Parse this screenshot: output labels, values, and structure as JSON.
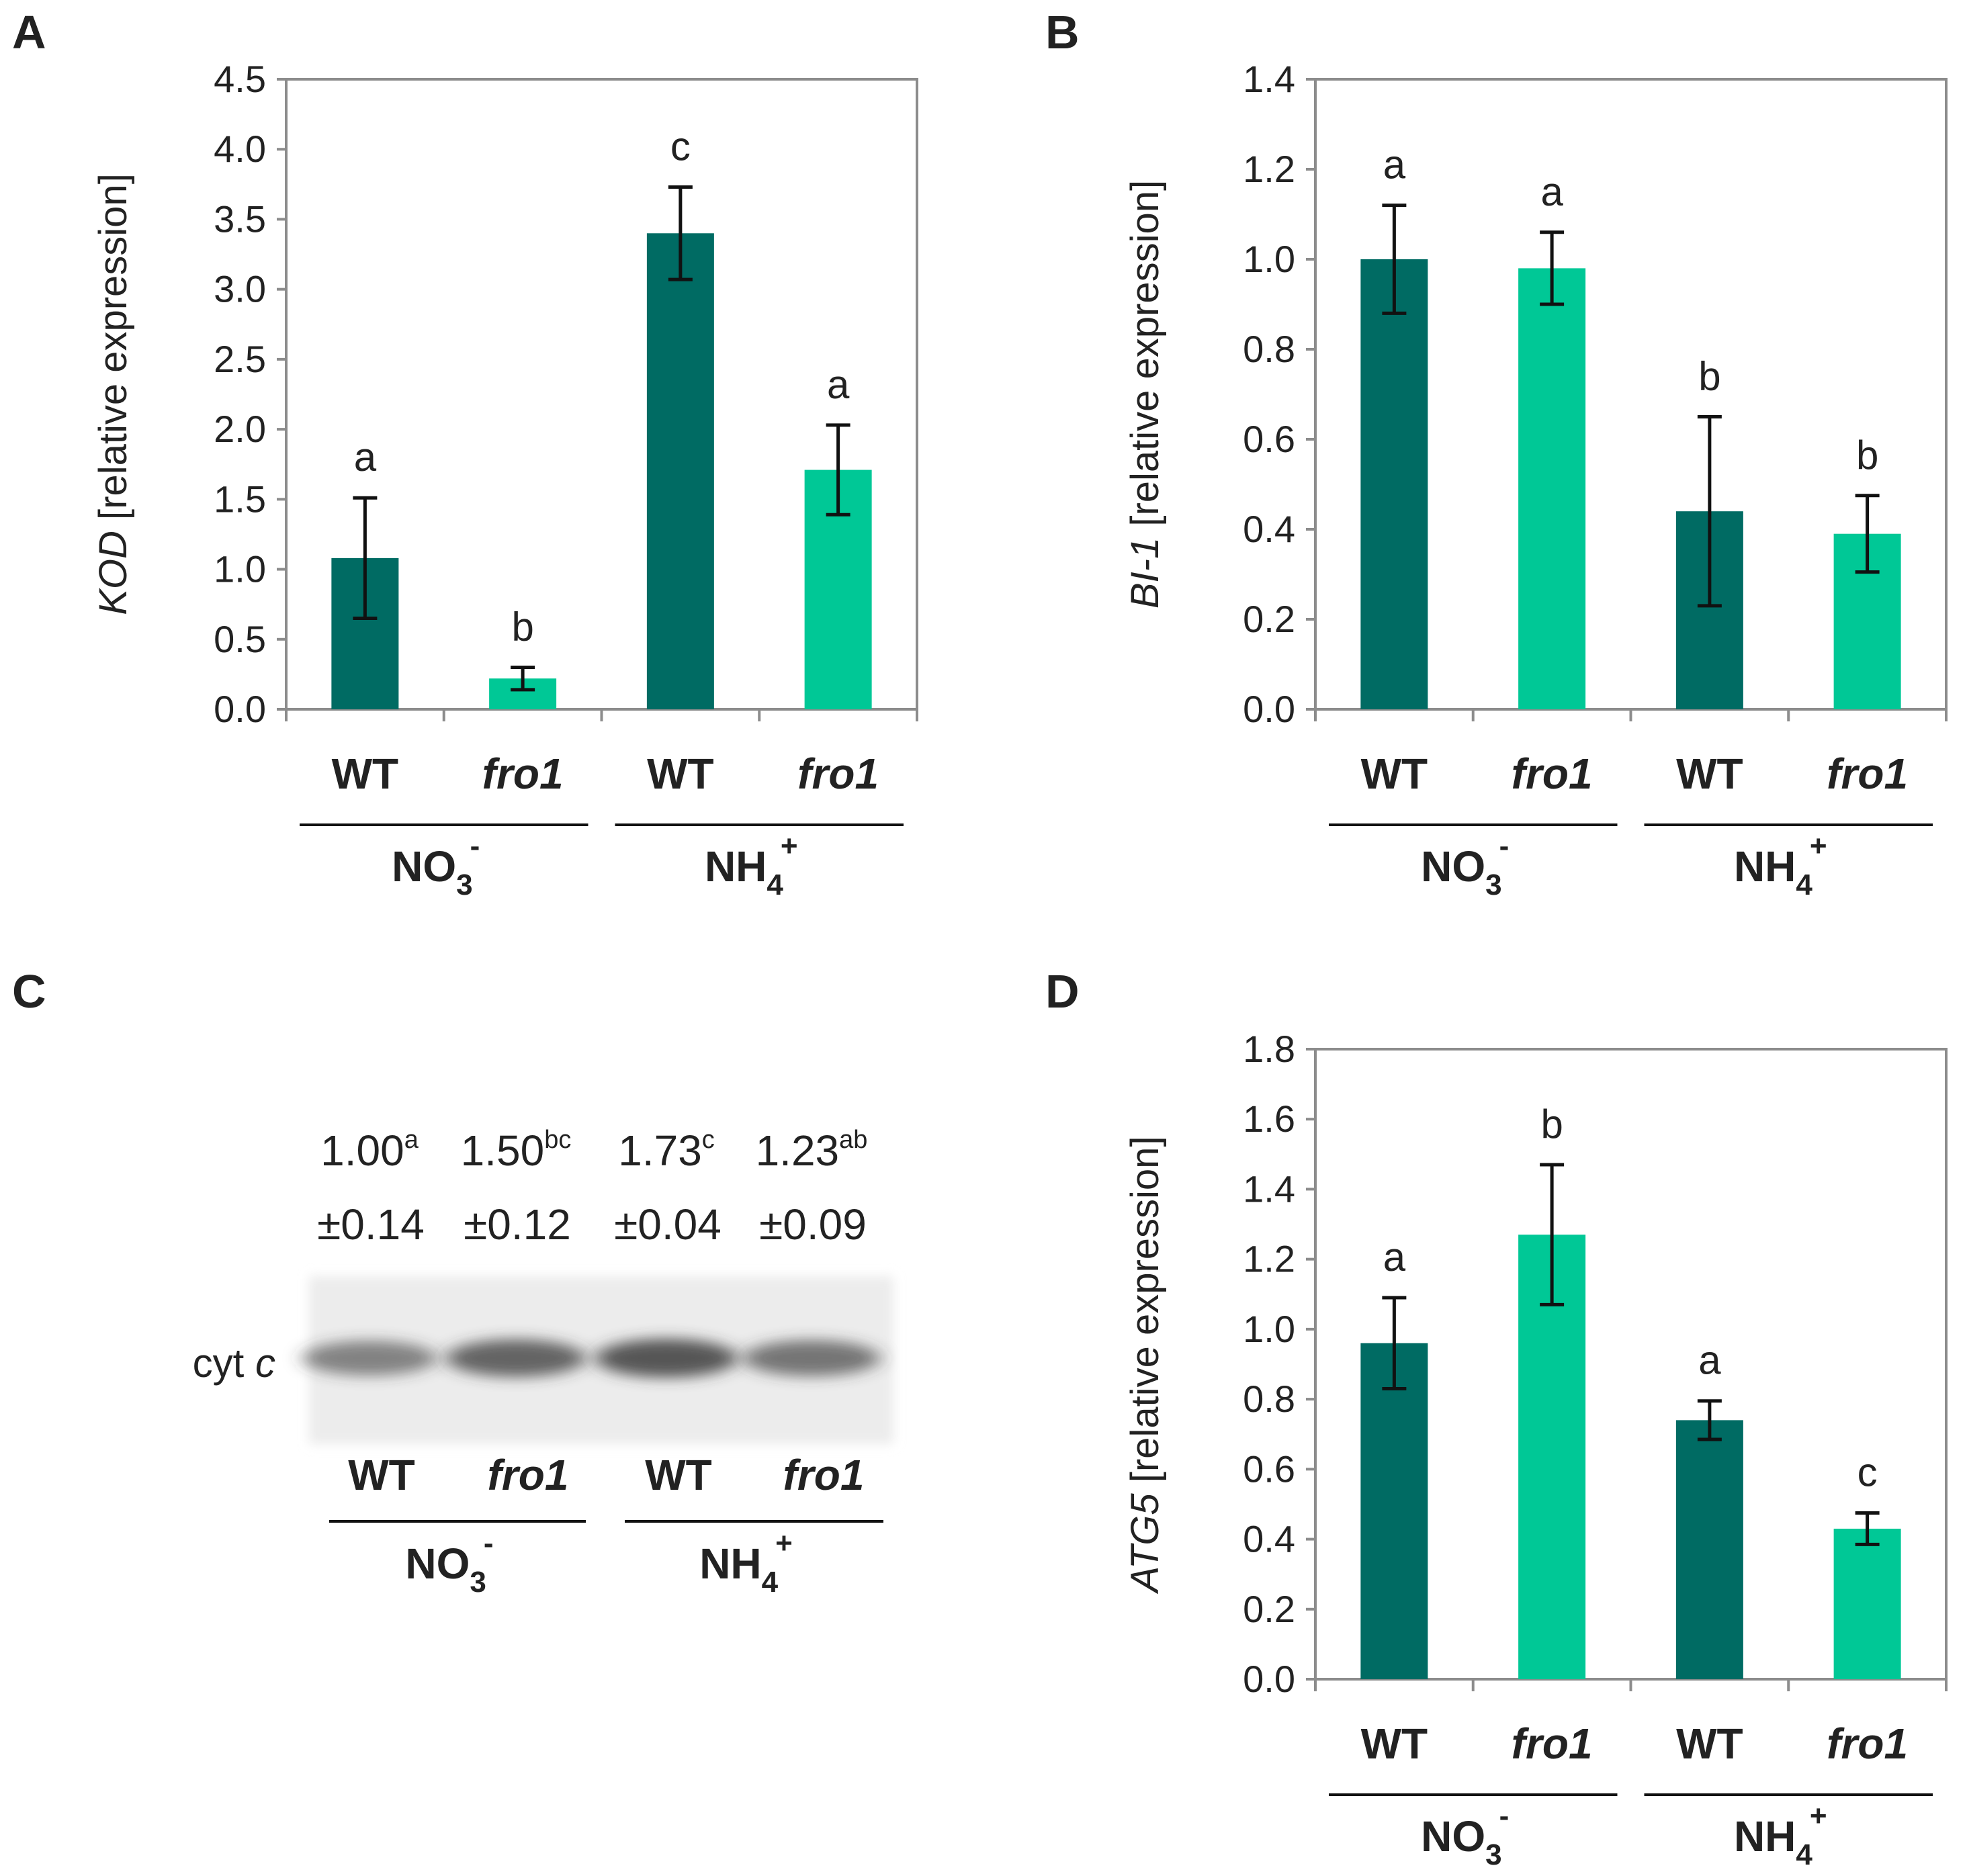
{
  "colors": {
    "wt": "#006b63",
    "fro1": "#00c896",
    "axis": "#8c8c8c",
    "text": "#222222",
    "errorbar": "#111111"
  },
  "panels": {
    "A": {
      "letter": "A"
    },
    "B": {
      "letter": "B"
    },
    "C": {
      "letter": "C"
    },
    "D": {
      "letter": "D"
    }
  },
  "chart_data": [
    {
      "id": "A",
      "type": "bar",
      "ylabel_gene": "KOD",
      "ylabel_rest": " [relative expression]",
      "ylim": [
        0,
        4.5
      ],
      "yticks": [
        "0.0",
        "0.5",
        "1.0",
        "1.5",
        "2.0",
        "2.5",
        "3.0",
        "3.5",
        "4.0",
        "4.5"
      ],
      "categories": [
        "WT",
        "fro1",
        "WT",
        "fro1"
      ],
      "groups": [
        {
          "base": "NO",
          "sub": "3",
          "sup": "-"
        },
        {
          "base": "NH",
          "sub": "4",
          "sup": "+"
        }
      ],
      "values": [
        1.08,
        0.22,
        3.4,
        1.71
      ],
      "errors": [
        0.43,
        0.08,
        0.33,
        0.32
      ],
      "letters": [
        "a",
        "b",
        "c",
        "a"
      ]
    },
    {
      "id": "B",
      "type": "bar",
      "ylabel_gene": "BI-1",
      "ylabel_rest": " [relative expression]",
      "ylim": [
        0,
        1.4
      ],
      "yticks": [
        "0.0",
        "0.2",
        "0.4",
        "0.6",
        "0.8",
        "1.0",
        "1.2",
        "1.4"
      ],
      "categories": [
        "WT",
        "fro1",
        "WT",
        "fro1"
      ],
      "groups": [
        {
          "base": "NO",
          "sub": "3",
          "sup": "-"
        },
        {
          "base": "NH",
          "sub": "4",
          "sup": "+"
        }
      ],
      "values": [
        1.0,
        0.98,
        0.44,
        0.39
      ],
      "errors": [
        0.12,
        0.08,
        0.21,
        0.085
      ],
      "letters": [
        "a",
        "a",
        "b",
        "b"
      ]
    },
    {
      "id": "D",
      "type": "bar",
      "ylabel_gene": "ATG5",
      "ylabel_rest": " [relative expression]",
      "ylim": [
        0,
        1.8
      ],
      "yticks": [
        "0.0",
        "0.2",
        "0.4",
        "0.6",
        "0.8",
        "1.0",
        "1.2",
        "1.4",
        "1.6",
        "1.8"
      ],
      "categories": [
        "WT",
        "fro1",
        "WT",
        "fro1"
      ],
      "groups": [
        {
          "base": "NO",
          "sub": "3",
          "sup": "-"
        },
        {
          "base": "NH",
          "sub": "4",
          "sup": "+"
        }
      ],
      "values": [
        0.96,
        1.27,
        0.74,
        0.43
      ],
      "errors": [
        0.13,
        0.2,
        0.055,
        0.045
      ],
      "letters": [
        "a",
        "b",
        "a",
        "c"
      ]
    }
  ],
  "blot": {
    "label": "cyt ",
    "label_italic": "c",
    "lanes": [
      "WT",
      "fro1",
      "WT",
      "fro1"
    ],
    "groups": [
      {
        "base": "NO",
        "sub": "3",
        "sup": "-"
      },
      {
        "base": "NH",
        "sub": "4",
        "sup": "+"
      }
    ],
    "quant": [
      {
        "value": "1.00",
        "letter": "a",
        "sd": "±0.14",
        "intensity": 1.0
      },
      {
        "value": "1.50",
        "letter": "bc",
        "sd": "±0.12",
        "intensity": 1.5
      },
      {
        "value": "1.73",
        "letter": "c",
        "sd": "±0.04",
        "intensity": 1.73
      },
      {
        "value": "1.23",
        "letter": "ab",
        "sd": "±0.09",
        "intensity": 1.23
      }
    ]
  }
}
